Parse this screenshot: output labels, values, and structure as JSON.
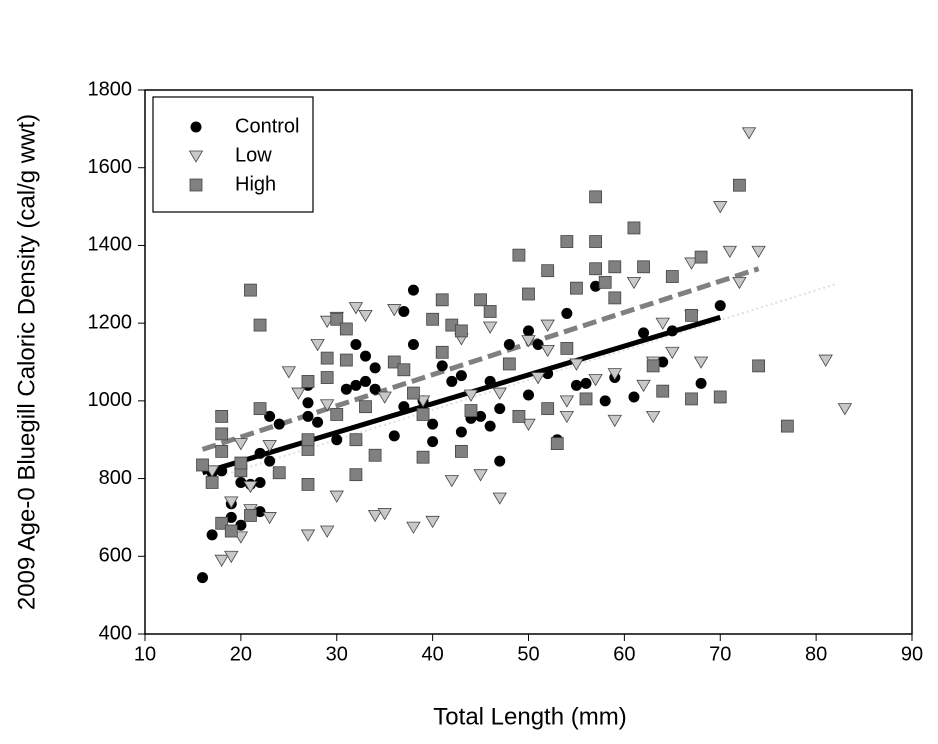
{
  "chart_data": {
    "type": "scatter",
    "xlabel": "Total Length (mm)",
    "ylabel": "2009 Age-0 Bluegill Caloric Density (cal/g wwt)",
    "xlim": [
      10,
      90
    ],
    "xticks": [
      10,
      20,
      30,
      40,
      50,
      60,
      70,
      80,
      90
    ],
    "ylim": [
      400,
      1800
    ],
    "yticks": [
      400,
      600,
      800,
      1000,
      1200,
      1400,
      1600,
      1800
    ],
    "legend": "upper left",
    "series": [
      {
        "name": "Control",
        "marker": "circle",
        "color": "#000000",
        "x": [
          16,
          17,
          17,
          18,
          19,
          19,
          20,
          20,
          21,
          22,
          22,
          22,
          23,
          23,
          24,
          27,
          27,
          27,
          28,
          30,
          31,
          32,
          32,
          33,
          33,
          34,
          34,
          36,
          37,
          37,
          38,
          38,
          39,
          40,
          40,
          41,
          42,
          43,
          43,
          44,
          45,
          46,
          46,
          47,
          47,
          48,
          50,
          50,
          51,
          52,
          53,
          54,
          55,
          56,
          57,
          58,
          59,
          61,
          62,
          64,
          65,
          68,
          70
        ],
        "values": [
          545,
          655,
          815,
          820,
          735,
          700,
          680,
          790,
          785,
          715,
          790,
          865,
          845,
          960,
          940,
          995,
          1040,
          960,
          945,
          900,
          1030,
          1040,
          1145,
          1115,
          1050,
          1030,
          1085,
          910,
          985,
          1230,
          1285,
          1145,
          1000,
          940,
          895,
          1090,
          1050,
          920,
          1065,
          955,
          960,
          935,
          1050,
          845,
          980,
          1145,
          1015,
          1180,
          1145,
          1070,
          900,
          1225,
          1040,
          1045,
          1295,
          1000,
          1060,
          1010,
          1175,
          1100,
          1180,
          1045,
          1245
        ]
      },
      {
        "name": "Low",
        "marker": "triangle-down",
        "color": "#c8c8c8",
        "x": [
          17,
          18,
          19,
          19,
          20,
          20,
          21,
          21,
          23,
          23,
          25,
          26,
          27,
          28,
          29,
          29,
          29,
          30,
          30,
          32,
          33,
          34,
          35,
          35,
          36,
          38,
          39,
          40,
          42,
          43,
          44,
          45,
          46,
          47,
          47,
          50,
          50,
          51,
          52,
          52,
          54,
          54,
          55,
          57,
          59,
          59,
          61,
          62,
          63,
          63,
          64,
          65,
          67,
          67,
          68,
          70,
          71,
          72,
          73,
          74,
          81,
          83
        ],
        "values": [
          820,
          590,
          600,
          740,
          650,
          890,
          780,
          720,
          885,
          700,
          1075,
          1020,
          655,
          1145,
          665,
          1205,
          990,
          755,
          1215,
          1240,
          1220,
          705,
          710,
          1010,
          1235,
          675,
          1000,
          690,
          795,
          1160,
          1015,
          810,
          1190,
          750,
          1020,
          940,
          1155,
          1060,
          1195,
          1130,
          960,
          1000,
          1095,
          1055,
          950,
          1070,
          1305,
          1040,
          960,
          1100,
          1200,
          1125,
          1355,
          1220,
          1100,
          1500,
          1385,
          1305,
          1690,
          1385,
          1105,
          980
        ]
      },
      {
        "name": "High",
        "marker": "square",
        "color": "#808080",
        "x": [
          16,
          17,
          18,
          18,
          18,
          18,
          19,
          20,
          20,
          21,
          21,
          22,
          22,
          24,
          27,
          27,
          27,
          27,
          29,
          29,
          30,
          30,
          31,
          31,
          32,
          32,
          33,
          34,
          36,
          37,
          38,
          39,
          39,
          40,
          41,
          41,
          42,
          43,
          43,
          44,
          45,
          46,
          48,
          49,
          49,
          50,
          52,
          52,
          53,
          54,
          54,
          55,
          56,
          57,
          57,
          57,
          58,
          59,
          59,
          61,
          62,
          63,
          64,
          65,
          67,
          67,
          68,
          70,
          72,
          74,
          77
        ],
        "values": [
          835,
          790,
          960,
          915,
          870,
          685,
          665,
          820,
          840,
          1285,
          705,
          1195,
          980,
          815,
          785,
          875,
          900,
          1050,
          1110,
          1060,
          965,
          1210,
          1105,
          1185,
          810,
          900,
          985,
          860,
          1100,
          1080,
          1020,
          855,
          965,
          1210,
          1260,
          1125,
          1195,
          870,
          1180,
          975,
          1260,
          1230,
          1095,
          960,
          1375,
          1275,
          980,
          1335,
          890,
          1410,
          1135,
          1290,
          1005,
          1525,
          1410,
          1340,
          1305,
          1265,
          1345,
          1445,
          1345,
          1090,
          1025,
          1320,
          1005,
          1220,
          1370,
          1010,
          1555,
          1090,
          935
        ]
      }
    ],
    "trendlines": [
      {
        "style": "dotted",
        "color": "#e0e0e0",
        "x": [
          17,
          82
        ],
        "values": [
          800,
          1300
        ]
      },
      {
        "style": "dashed",
        "color": "#808080",
        "x": [
          16,
          74
        ],
        "values": [
          875,
          1340
        ]
      },
      {
        "style": "solid",
        "color": "#000000",
        "x": [
          16,
          70
        ],
        "values": [
          815,
          1215
        ]
      }
    ]
  }
}
